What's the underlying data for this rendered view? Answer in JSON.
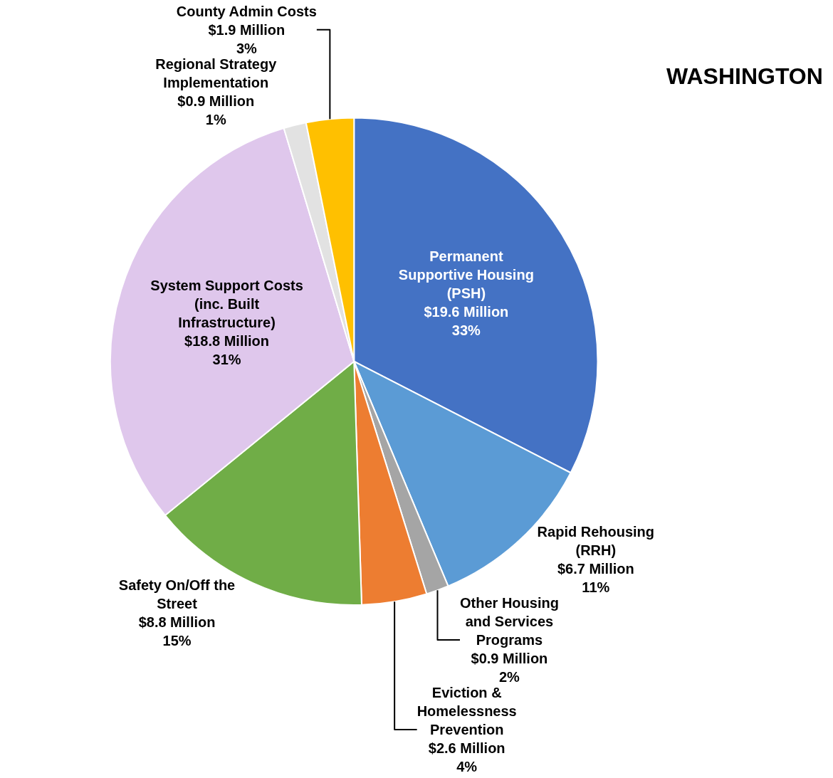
{
  "chart_data": {
    "type": "pie",
    "title": "WASHINGTON",
    "categories": [
      "Permanent\nSupportive Housing\n(PSH)",
      "Rapid Rehousing\n(RRH)",
      "Other Housing\nand Services\nPrograms",
      "Eviction &\nHomelessness\nPrevention",
      "Safety On/Off the\nStreet",
      "System Support Costs\n(inc. Built\nInfrastructure)",
      "Regional Strategy\nImplementation",
      "County Admin Costs"
    ],
    "values": [
      19.6,
      6.7,
      0.9,
      2.6,
      8.8,
      18.8,
      0.9,
      1.9
    ],
    "value_labels": [
      "$19.6 Million\n33%",
      "$6.7 Million\n11%",
      "$0.9 Million\n2%",
      "$2.6 Million\n4%",
      "$8.8 Million\n15%",
      "$18.8 Million\n31%",
      "$0.9 Million\n1%",
      "$1.9 Million\n3%"
    ],
    "colors": [
      "#4472c4",
      "#5b9bd5",
      "#a5a5a5",
      "#ed7d31",
      "#70ad47",
      "#dfc7ec",
      "#e2e2e2",
      "#ffc000"
    ],
    "legend": false
  }
}
